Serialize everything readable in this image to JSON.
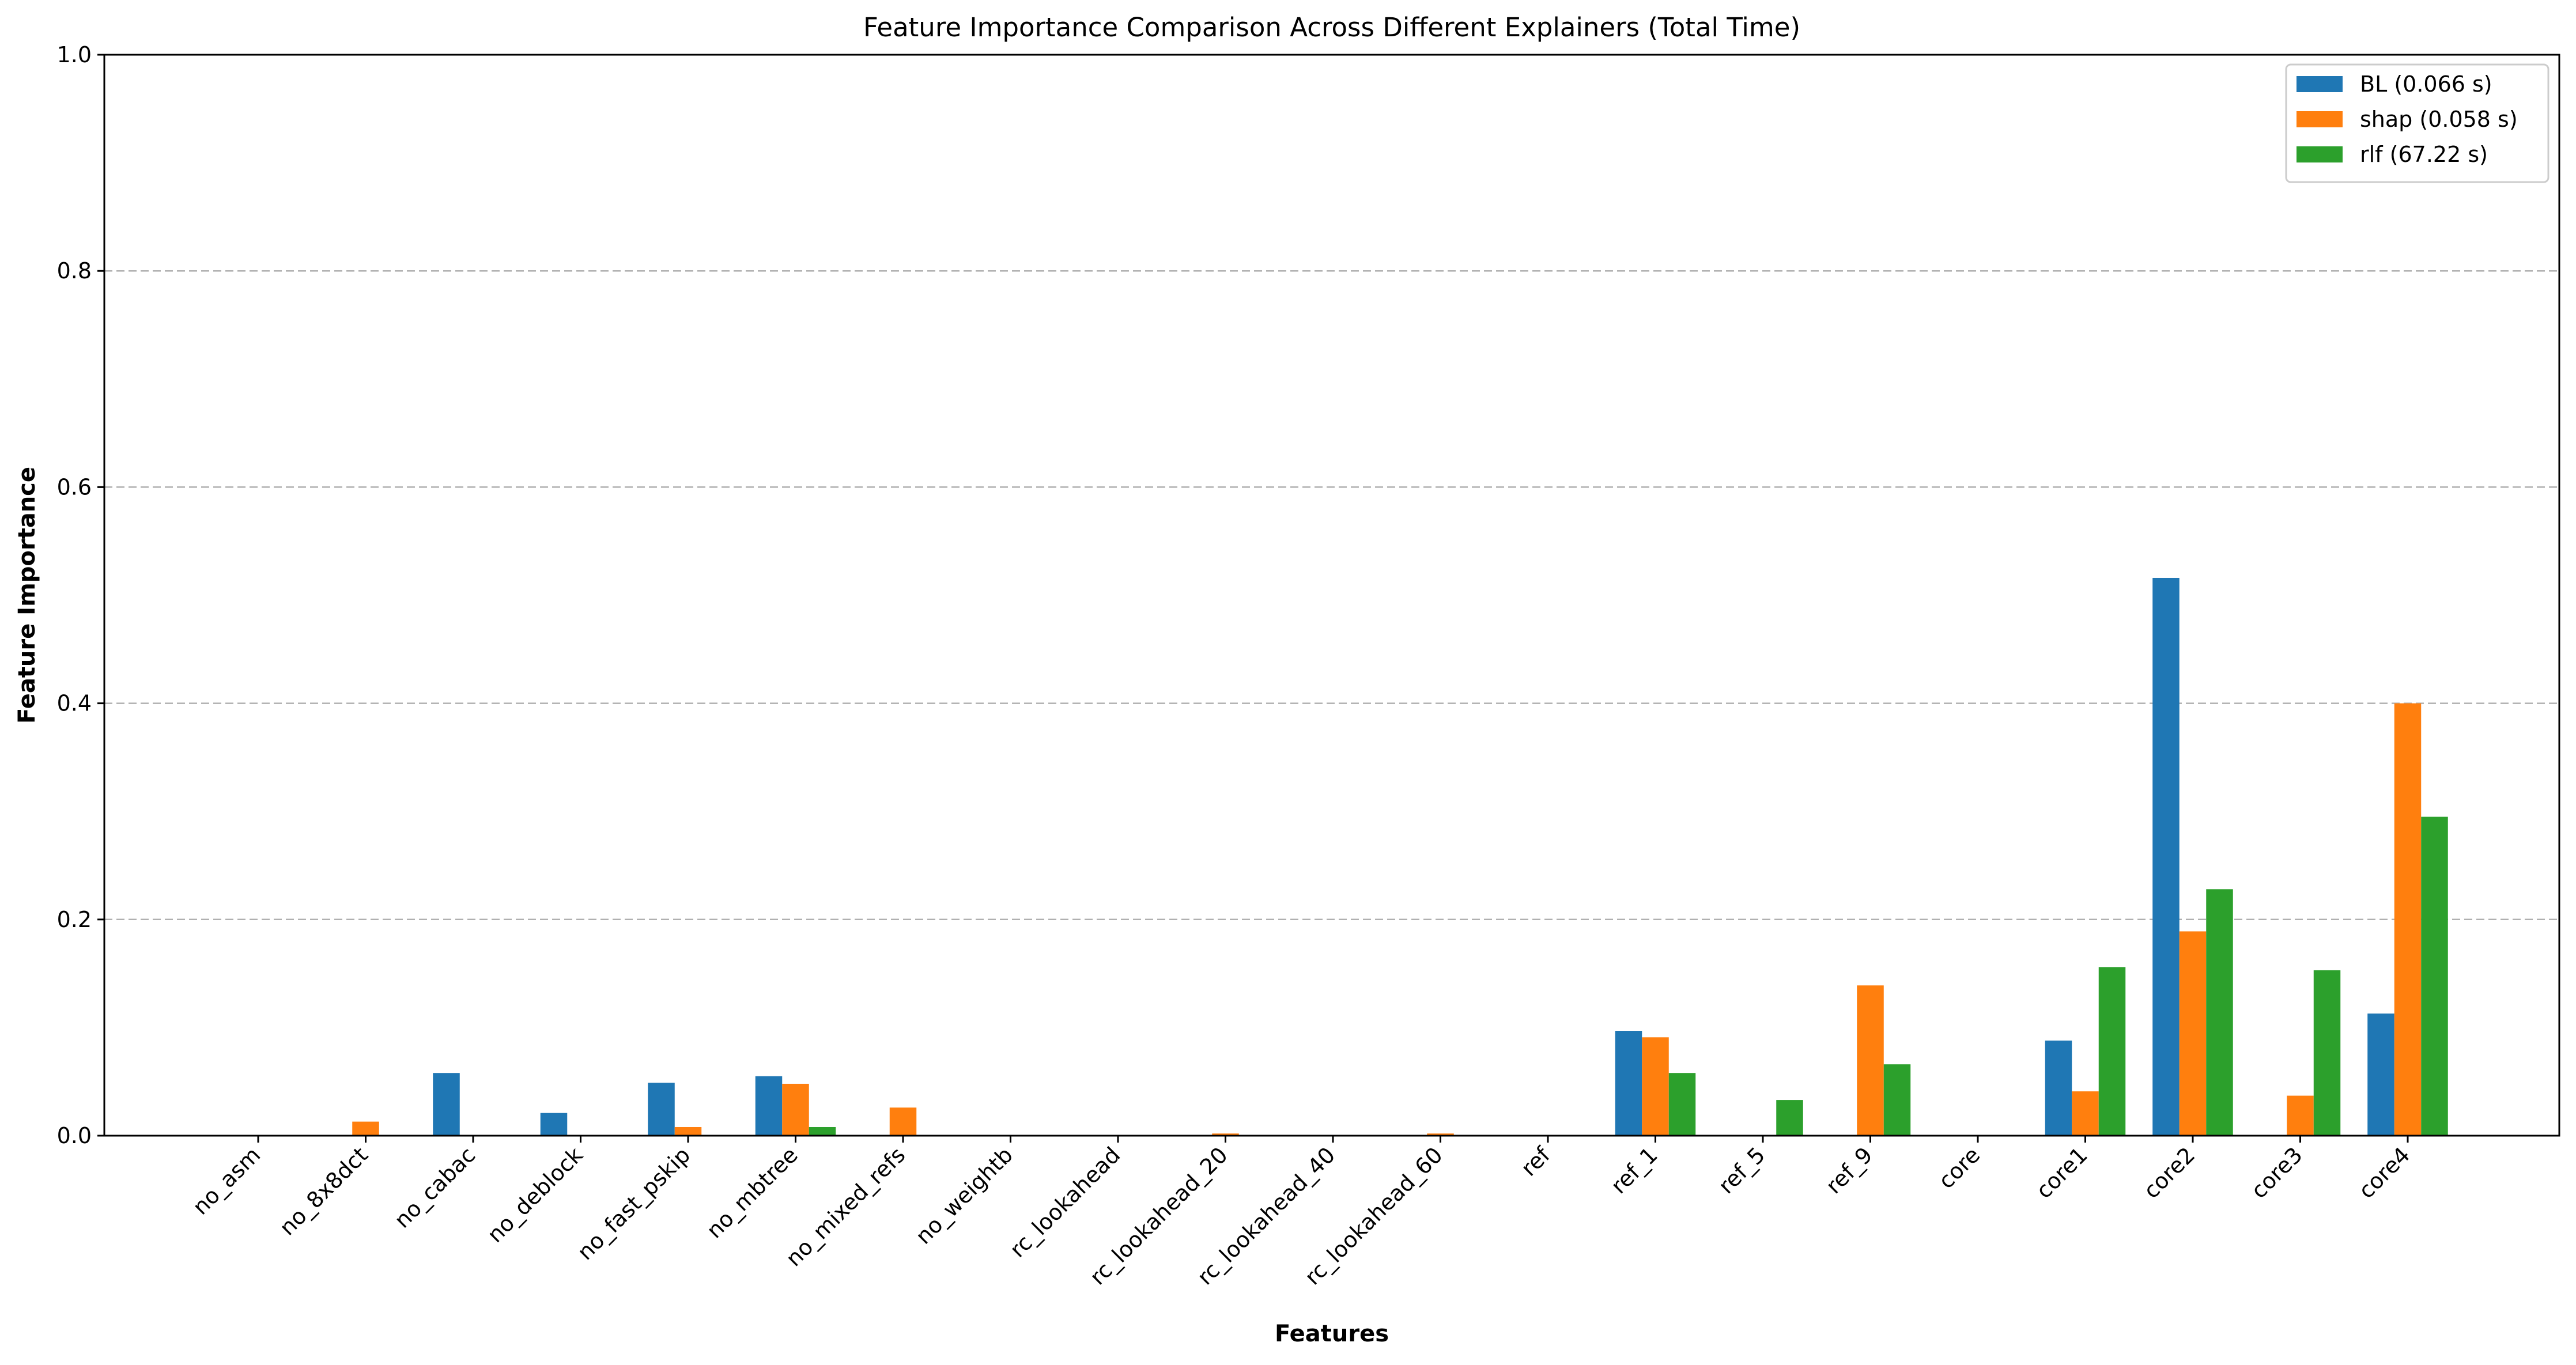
{
  "chart_data": {
    "type": "bar",
    "title": "Feature Importance Comparison Across Different Explainers (Total Time)",
    "xlabel": "Features",
    "ylabel": "Feature Importance",
    "ylim": [
      0,
      1.0
    ],
    "yticks": [
      "0.0",
      "0.2",
      "0.4",
      "0.6",
      "0.8",
      "1.0"
    ],
    "grid": "y-major-dashed",
    "legend_position": "top-right",
    "categories": [
      "no_asm",
      "no_8x8dct",
      "no_cabac",
      "no_deblock",
      "no_fast_pskip",
      "no_mbtree",
      "no_mixed_refs",
      "no_weightb",
      "rc_lookahead",
      "rc_lookahead_20",
      "rc_lookahead_40",
      "rc_lookahead_60",
      "ref",
      "ref_1",
      "ref_5",
      "ref_9",
      "core",
      "core1",
      "core2",
      "core3",
      "core4"
    ],
    "series": [
      {
        "name": "BL (0.066 s)",
        "color": "#1f77b4",
        "values": [
          0,
          0,
          0.058,
          0.021,
          0.049,
          0.055,
          0,
          0,
          0,
          0,
          0,
          0,
          0,
          0.097,
          0,
          0,
          0,
          0.088,
          0.516,
          0,
          0.113
        ]
      },
      {
        "name": "shap (0.058 s)",
        "color": "#ff7f0e",
        "values": [
          0,
          0.013,
          0,
          0,
          0.008,
          0.048,
          0.026,
          0,
          0,
          0.002,
          0,
          0.002,
          0,
          0.091,
          0,
          0.139,
          0,
          0.041,
          0.189,
          0.037,
          0.4
        ]
      },
      {
        "name": "rlf (67.22 s)",
        "color": "#2ca02c",
        "values": [
          0,
          0,
          0,
          0,
          0,
          0.008,
          0,
          0,
          0,
          0,
          0,
          0,
          0,
          0.058,
          0.033,
          0.066,
          0,
          0.156,
          0.228,
          0.153,
          0.295
        ]
      }
    ]
  }
}
